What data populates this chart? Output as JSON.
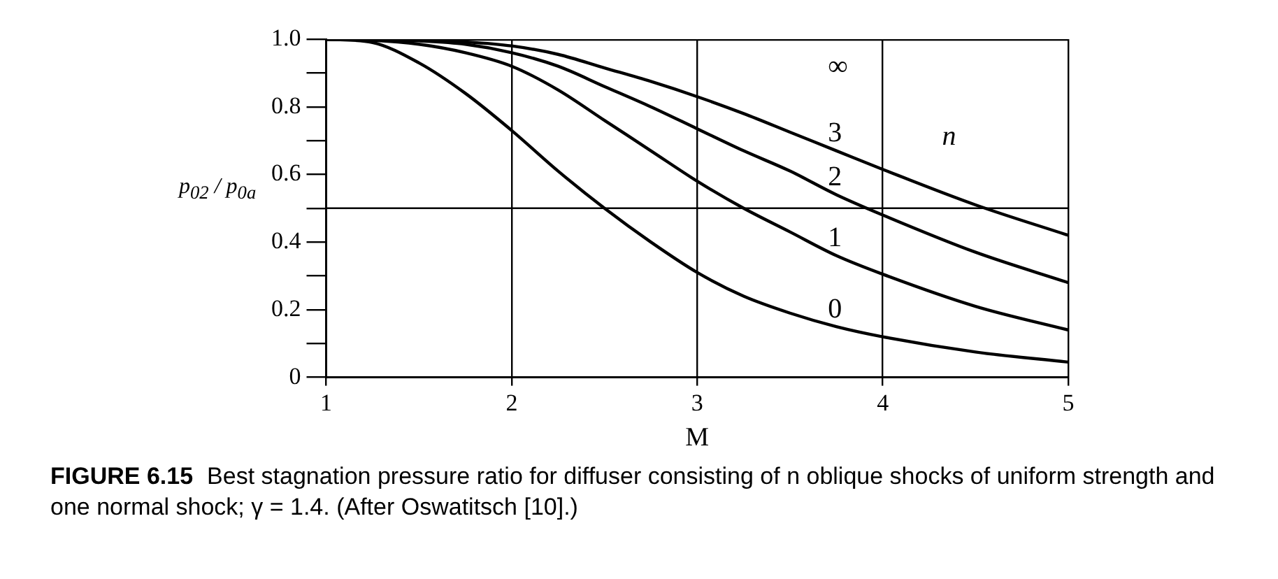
{
  "chart_data": {
    "type": "line",
    "title": "FIGURE 6.15",
    "xlabel": "M",
    "ylabel": "p$_{02}$ / p$_{0a}$",
    "x": [
      1,
      1.25,
      1.5,
      1.75,
      2,
      2.25,
      2.5,
      2.75,
      3,
      3.25,
      3.5,
      3.75,
      4,
      4.5,
      5
    ],
    "series": [
      {
        "name": "0",
        "color": "#000000",
        "values": [
          1,
          0.99,
          0.93,
          0.84,
          0.73,
          0.61,
          0.5,
          0.4,
          0.31,
          0.24,
          0.19,
          0.15,
          0.12,
          0.075,
          0.045
        ]
      },
      {
        "name": "1",
        "color": "#000000",
        "values": [
          1,
          0.997,
          0.985,
          0.96,
          0.92,
          0.85,
          0.76,
          0.67,
          0.58,
          0.5,
          0.43,
          0.36,
          0.305,
          0.21,
          0.14
        ]
      },
      {
        "name": "2",
        "color": "#000000",
        "values": [
          1,
          0.999,
          0.995,
          0.985,
          0.96,
          0.92,
          0.86,
          0.8,
          0.735,
          0.67,
          0.61,
          0.54,
          0.48,
          0.37,
          0.28
        ]
      },
      {
        "name": "3",
        "color": "#000000",
        "values": [
          1,
          1,
          0.998,
          0.992,
          0.98,
          0.955,
          0.915,
          0.875,
          0.83,
          0.78,
          0.725,
          0.67,
          0.615,
          0.51,
          0.42
        ]
      },
      {
        "name": "∞",
        "color": "#000000",
        "values": [
          1,
          1,
          1,
          1,
          1,
          1,
          1,
          1,
          1,
          1,
          1,
          1,
          1,
          1,
          1
        ]
      }
    ],
    "xlim": [
      1,
      5
    ],
    "xticks": [
      1,
      2,
      3,
      4,
      5
    ],
    "ylim": [
      0,
      1
    ],
    "yticks": [
      0,
      {
        "value": 0.1,
        "label": null
      },
      0.2,
      {
        "value": 0.3,
        "label": null
      },
      0.4,
      {
        "value": 0.5,
        "label": null
      },
      0.6,
      {
        "value": 0.7,
        "label": null
      },
      0.8,
      {
        "value": 0.9,
        "label": null
      },
      {
        "value": 1,
        "label": "1.0"
      }
    ],
    "grid": "x",
    "legend": false,
    "marker": "none",
    "line_style": "solid",
    "ref_lines": [
      {
        "axis": "y",
        "value": 0.5,
        "color": "#000000"
      }
    ],
    "annotations": [
      "n",
      "Best stagnation pressure ratio for diffuser consisting of n oblique shocks of uniform strength and one normal shock; γ = 1.4. (After Oswatitsch [10].)"
    ]
  }
}
